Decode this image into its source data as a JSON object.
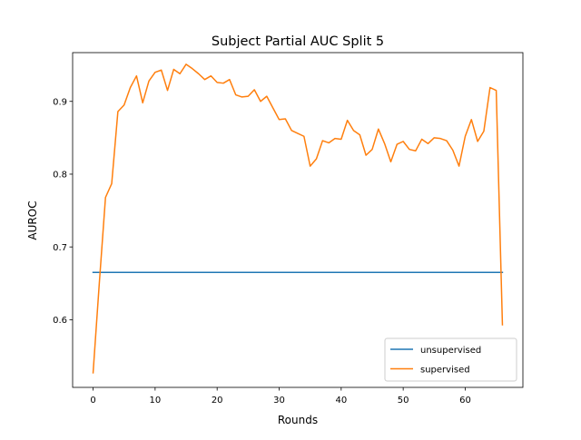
{
  "chart_data": {
    "type": "line",
    "title": "Subject Partial AUC Split 5",
    "xlabel": "Rounds",
    "ylabel": "AUROC",
    "xlim": [
      -3.3,
      69.3
    ],
    "ylim": [
      0.507,
      0.967
    ],
    "xticks": [
      0,
      10,
      20,
      30,
      40,
      50,
      60
    ],
    "yticks": [
      0.6,
      0.7,
      0.8,
      0.9
    ],
    "ytick_labels": [
      "0.6",
      "0.7",
      "0.8",
      "0.9"
    ],
    "grid": false,
    "legend_position": "lower-right",
    "series": [
      {
        "name": "unsupervised",
        "color": "#1f77b4",
        "x": [
          0,
          66
        ],
        "y": [
          0.665,
          0.665
        ]
      },
      {
        "name": "supervised",
        "color": "#ff7f0e",
        "x": [
          0,
          1,
          2,
          3,
          4,
          5,
          6,
          7,
          8,
          9,
          10,
          11,
          12,
          13,
          14,
          15,
          16,
          17,
          18,
          19,
          20,
          21,
          22,
          23,
          24,
          25,
          26,
          27,
          28,
          29,
          30,
          31,
          32,
          33,
          34,
          35,
          36,
          37,
          38,
          39,
          40,
          41,
          42,
          43,
          44,
          45,
          46,
          47,
          48,
          49,
          50,
          51,
          52,
          53,
          54,
          55,
          56,
          57,
          58,
          59,
          60,
          61,
          62,
          63,
          64,
          65,
          66
        ],
        "y": [
          0.527,
          0.65,
          0.768,
          0.787,
          0.886,
          0.895,
          0.919,
          0.935,
          0.898,
          0.928,
          0.94,
          0.943,
          0.915,
          0.944,
          0.938,
          0.951,
          0.945,
          0.938,
          0.93,
          0.935,
          0.926,
          0.925,
          0.93,
          0.909,
          0.906,
          0.907,
          0.916,
          0.9,
          0.907,
          0.891,
          0.875,
          0.876,
          0.86,
          0.856,
          0.852,
          0.811,
          0.821,
          0.846,
          0.843,
          0.849,
          0.848,
          0.874,
          0.86,
          0.854,
          0.826,
          0.834,
          0.862,
          0.842,
          0.817,
          0.841,
          0.845,
          0.834,
          0.832,
          0.848,
          0.842,
          0.85,
          0.849,
          0.846,
          0.833,
          0.811,
          0.852,
          0.875,
          0.845,
          0.859,
          0.919,
          0.915,
          0.593
        ]
      }
    ]
  }
}
